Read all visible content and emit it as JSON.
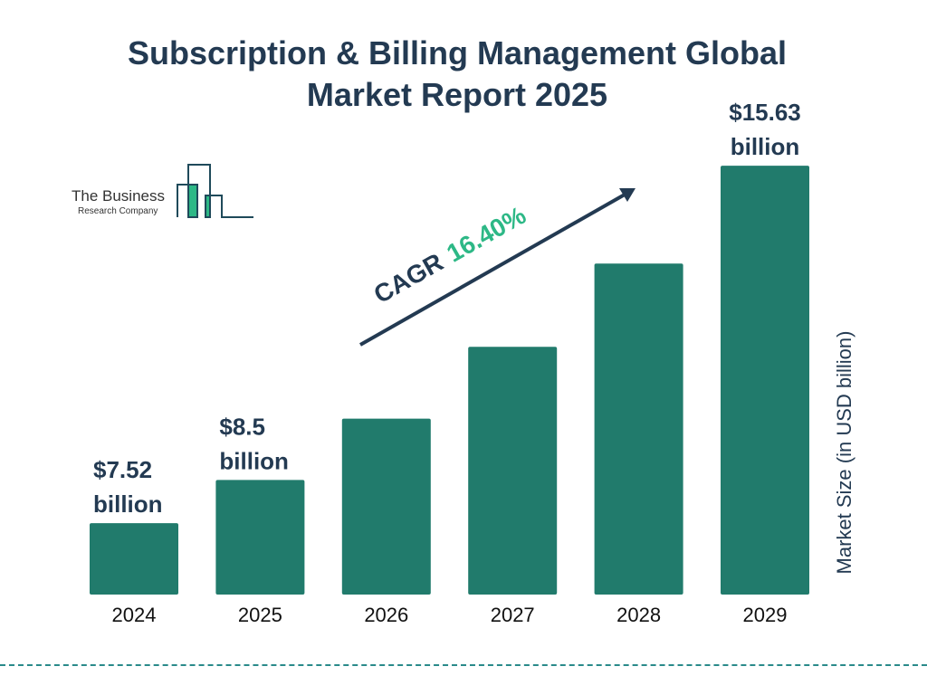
{
  "title_line1": "Subscription & Billing Management Global",
  "title_line2": "Market Report 2025",
  "logo": {
    "line1": "The Business",
    "line2": "Research Company"
  },
  "cagr": {
    "label": "CAGR",
    "value": "16.40%"
  },
  "colors": {
    "bar": "#217b6c",
    "title": "#233a52",
    "accent": "#2db886",
    "divider": "#2a8a8a"
  },
  "chart_data": {
    "type": "bar",
    "title": "Subscription & Billing Management Global Market Report 2025",
    "categories": [
      "2024",
      "2025",
      "2026",
      "2027",
      "2028",
      "2029"
    ],
    "values": [
      7.52,
      8.5,
      9.89,
      11.52,
      13.41,
      15.63
    ],
    "data_labels": [
      {
        "index": 0,
        "line1": "$7.52",
        "line2": "billion"
      },
      {
        "index": 1,
        "line1": "$8.5",
        "line2": "billion"
      },
      {
        "index": 5,
        "line1": "$15.63",
        "line2": "billion"
      }
    ],
    "xlabel": "",
    "ylabel": "Market Size (in USD billion)",
    "grid": false,
    "legend": "none"
  }
}
